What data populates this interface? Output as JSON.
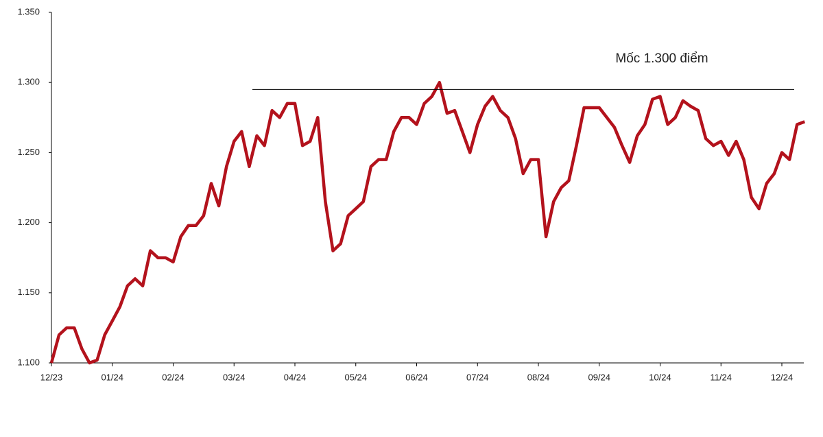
{
  "chart_data": {
    "type": "line",
    "categories": [
      "12/23",
      null,
      null,
      null,
      null,
      null,
      null,
      null,
      "01/24",
      null,
      null,
      null,
      null,
      null,
      null,
      null,
      "02/24",
      null,
      null,
      null,
      null,
      null,
      null,
      null,
      "03/24",
      null,
      null,
      null,
      null,
      null,
      null,
      null,
      "04/24",
      null,
      null,
      null,
      null,
      null,
      null,
      null,
      "05/24",
      null,
      null,
      null,
      null,
      null,
      null,
      null,
      "06/24",
      null,
      null,
      null,
      null,
      null,
      null,
      null,
      "07/24",
      null,
      null,
      null,
      null,
      null,
      null,
      null,
      "08/24",
      null,
      null,
      null,
      null,
      null,
      null,
      null,
      "09/24",
      null,
      null,
      null,
      null,
      null,
      null,
      null,
      "10/24",
      null,
      null,
      null,
      null,
      null,
      null,
      null,
      "11/24",
      null,
      null,
      null,
      null,
      null,
      null,
      null,
      "12/24",
      null,
      null,
      null
    ],
    "series": [
      {
        "color": "#b3121c",
        "values": [
          1100,
          1120,
          1125,
          1125,
          1110,
          1100,
          1102,
          1120,
          1130,
          1140,
          1155,
          1160,
          1155,
          1180,
          1175,
          1175,
          1172,
          1190,
          1198,
          1198,
          1205,
          1228,
          1212,
          1240,
          1258,
          1265,
          1240,
          1262,
          1255,
          1280,
          1275,
          1285,
          1285,
          1255,
          1258,
          1275,
          1215,
          1180,
          1185,
          1205,
          1210,
          1215,
          1240,
          1245,
          1245,
          1265,
          1275,
          1275,
          1270,
          1285,
          1290,
          1300,
          1278,
          1280,
          1265,
          1250,
          1270,
          1283,
          1290,
          1280,
          1275,
          1260,
          1235,
          1245,
          1245,
          1190,
          1215,
          1225,
          1230,
          1255,
          1282,
          1282,
          1282,
          1275,
          1268,
          1255,
          1243,
          1262,
          1270,
          1288,
          1290,
          1270,
          1275,
          1287,
          1283,
          1280,
          1260,
          1255,
          1258,
          1248,
          1258,
          1245,
          1218,
          1210,
          1228,
          1235,
          1250,
          1245,
          1270,
          1272
        ]
      }
    ],
    "ylim": [
      1100,
      1350
    ],
    "yticks": [
      {
        "value": 1100,
        "label": "1.100"
      },
      {
        "value": 1150,
        "label": "1.150"
      },
      {
        "value": 1200,
        "label": "1.200"
      },
      {
        "value": 1250,
        "label": "1.250"
      },
      {
        "value": 1300,
        "label": "1.300"
      },
      {
        "value": 1350,
        "label": "1.350"
      }
    ],
    "reference_line": {
      "value": 1295,
      "label": "Mốc 1.300 điểm"
    }
  }
}
